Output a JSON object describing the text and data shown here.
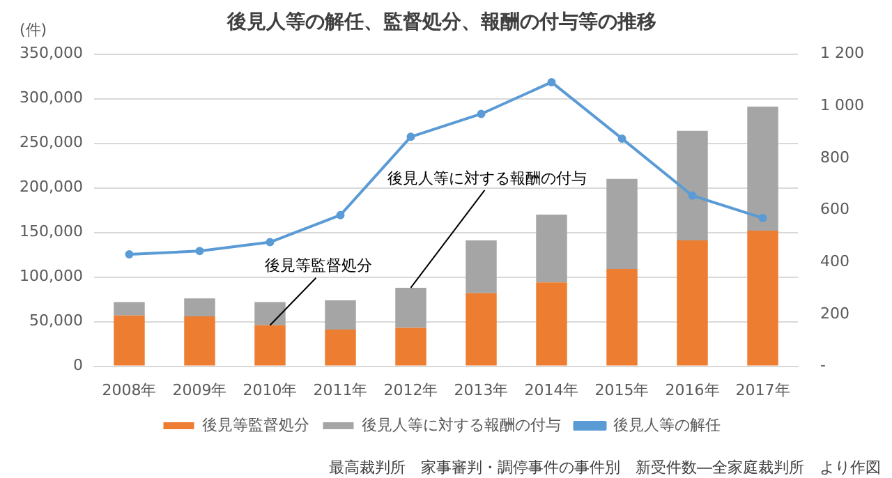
{
  "chart_data": {
    "type": "bar",
    "title": "後見人等の解任、監督処分、報酬の付与等の推移",
    "ylabel": "(件)",
    "categories": [
      "2008年",
      "2009年",
      "2010年",
      "2011年",
      "2012年",
      "2013年",
      "2014年",
      "2015年",
      "2016年",
      "2017年"
    ],
    "stacked": true,
    "series": [
      {
        "name": "後見等監督処分",
        "color": "#ed7d31",
        "values": [
          57000,
          56000,
          46000,
          41000,
          43000,
          82000,
          94000,
          109000,
          141000,
          152000
        ]
      },
      {
        "name": "後見人等に対する報酬の付与",
        "color": "#a5a5a5",
        "values": [
          15000,
          20000,
          26000,
          33000,
          45000,
          59000,
          76000,
          101000,
          123000,
          139000
        ]
      },
      {
        "name": "後見人等の解任",
        "type": "line",
        "axis": "y2",
        "color": "#5b9bd5",
        "values": [
          430,
          443,
          477,
          581,
          882,
          970,
          1092,
          875,
          656,
          570
        ]
      }
    ],
    "ylim": [
      0,
      350000
    ],
    "yticks": [
      {
        "value": 0,
        "label": "0"
      },
      {
        "value": 50000,
        "label": "50,000"
      },
      {
        "value": 100000,
        "label": "100,000"
      },
      {
        "value": 150000,
        "label": "150,000"
      },
      {
        "value": 200000,
        "label": "200,000"
      },
      {
        "value": 250000,
        "label": "250,000"
      },
      {
        "value": 300000,
        "label": "300,000"
      },
      {
        "value": 350000,
        "label": "350,000"
      }
    ],
    "y2lim": [
      0,
      1200
    ],
    "y2ticks": [
      {
        "value": 0,
        "label": "-"
      },
      200,
      400,
      600,
      800,
      {
        "value": 1000,
        "label": "1 000"
      },
      {
        "value": 1200,
        "label": "1 200"
      }
    ],
    "grid": "y",
    "legend": "bottom",
    "marker": "circle",
    "annotations": [
      {
        "text": "後見等監督処分",
        "x": "2010年",
        "y": 46000
      },
      {
        "text": "後見人等に対する報酬の付与",
        "x": "2012年",
        "y": 88000
      },
      "最高裁判所　家事審判・調停事件の事件別　新受件数―全家庭裁判所　より作図"
    ]
  }
}
